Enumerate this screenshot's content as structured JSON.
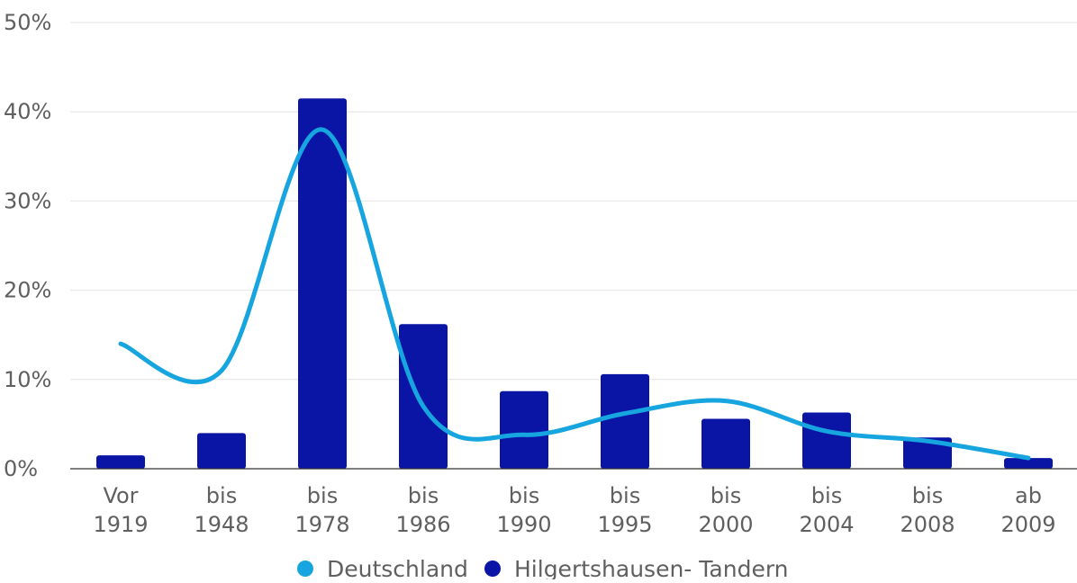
{
  "chart_data": {
    "type": "bar",
    "categories": [
      [
        "Vor",
        "1919"
      ],
      [
        "bis",
        "1948"
      ],
      [
        "bis",
        "1978"
      ],
      [
        "bis",
        "1986"
      ],
      [
        "bis",
        "1990"
      ],
      [
        "bis",
        "1995"
      ],
      [
        "bis",
        "2000"
      ],
      [
        "bis",
        "2004"
      ],
      [
        "bis",
        "2008"
      ],
      [
        "ab",
        "2009"
      ]
    ],
    "series": [
      {
        "name": "Hilgertshausen- Tandern",
        "kind": "bar",
        "color": "#0a14a5",
        "values": [
          1.5,
          4.0,
          41.5,
          16.2,
          8.7,
          10.6,
          5.6,
          6.3,
          3.5,
          1.2
        ]
      },
      {
        "name": "Deutschland",
        "kind": "line",
        "color": "#17a5e0",
        "values": [
          14.0,
          11.0,
          38.0,
          7.0,
          3.8,
          6.2,
          7.6,
          4.2,
          3.1,
          1.2
        ]
      }
    ],
    "ylim": [
      0,
      50
    ],
    "yticks": [
      "0%",
      "10%",
      "20%",
      "30%",
      "40%",
      "50%"
    ],
    "grid": true,
    "legend": "bottom-center"
  }
}
